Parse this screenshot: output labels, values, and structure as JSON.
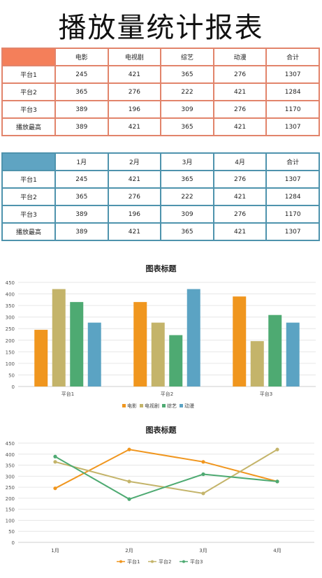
{
  "title": "播放量统计报表",
  "table1": {
    "headers": [
      "",
      "电影",
      "电视剧",
      "综艺",
      "动漫",
      "合计"
    ],
    "rows": [
      [
        "平台1",
        "245",
        "421",
        "365",
        "276",
        "1307"
      ],
      [
        "平台2",
        "365",
        "276",
        "222",
        "421",
        "1284"
      ],
      [
        "平台3",
        "389",
        "196",
        "309",
        "276",
        "1170"
      ],
      [
        "播放最高",
        "389",
        "421",
        "365",
        "421",
        "1307"
      ]
    ]
  },
  "table2": {
    "headers": [
      "",
      "1月",
      "2月",
      "3月",
      "4月",
      "合计"
    ],
    "rows": [
      [
        "平台1",
        "245",
        "421",
        "365",
        "276",
        "1307"
      ],
      [
        "平台2",
        "365",
        "276",
        "222",
        "421",
        "1284"
      ],
      [
        "平台3",
        "389",
        "196",
        "309",
        "276",
        "1170"
      ],
      [
        "播放最高",
        "389",
        "421",
        "365",
        "421",
        "1307"
      ]
    ]
  },
  "colors": {
    "table1_border": "#e2846b",
    "table1_corner": "#f47f5a",
    "table2_border": "#4e93ad",
    "table2_corner": "#5fa4c2"
  },
  "chart_data": [
    {
      "type": "bar",
      "title": "图表标题",
      "categories": [
        "平台1",
        "平台2",
        "平台3"
      ],
      "series": [
        {
          "name": "电影",
          "values": [
            245,
            365,
            389
          ],
          "color": "#f0961e"
        },
        {
          "name": "电视剧",
          "values": [
            421,
            276,
            196
          ],
          "color": "#c4b46a"
        },
        {
          "name": "综艺",
          "values": [
            365,
            222,
            309
          ],
          "color": "#4eaa72"
        },
        {
          "name": "动漫",
          "values": [
            276,
            421,
            276
          ],
          "color": "#5ba3c3"
        }
      ],
      "ylim": [
        0,
        450
      ],
      "yticks": [
        0,
        50,
        100,
        150,
        200,
        250,
        300,
        350,
        400,
        450
      ],
      "grid": true,
      "legend": "bottom"
    },
    {
      "type": "line",
      "title": "图表标题",
      "categories": [
        "1月",
        "2月",
        "3月",
        "4月"
      ],
      "series": [
        {
          "name": "平台1",
          "values": [
            245,
            421,
            365,
            276
          ],
          "color": "#f0961e"
        },
        {
          "name": "平台2",
          "values": [
            365,
            276,
            222,
            421
          ],
          "color": "#c4b46a"
        },
        {
          "name": "平台3",
          "values": [
            389,
            196,
            309,
            276
          ],
          "color": "#4eaa72"
        }
      ],
      "ylim": [
        0,
        450
      ],
      "yticks": [
        0,
        50,
        100,
        150,
        200,
        250,
        300,
        350,
        400,
        450
      ],
      "grid": true,
      "legend": "bottom"
    }
  ]
}
